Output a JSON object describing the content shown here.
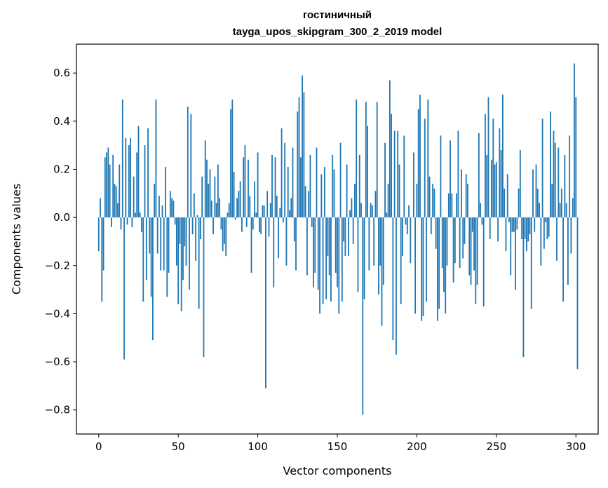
{
  "chart_data": {
    "type": "bar",
    "title_lines": [
      "гостиничный",
      "tayga_upos_skipgram_300_2_2019 model"
    ],
    "xlabel": "Vector components",
    "ylabel": "Components values",
    "xlim": [
      -14,
      314
    ],
    "ylim": [
      -0.9,
      0.72
    ],
    "xticks": [
      0,
      50,
      100,
      150,
      200,
      250,
      300
    ],
    "yticks": [
      -0.8,
      -0.6,
      -0.4,
      -0.2,
      0.0,
      0.2,
      0.4,
      0.6
    ],
    "xtick_labels": [
      "0",
      "50",
      "100",
      "150",
      "200",
      "250",
      "300"
    ],
    "ytick_labels": [
      "−0.8",
      "−0.6",
      "−0.4",
      "−0.2",
      "0.0",
      "0.2",
      "0.4",
      "0.6"
    ],
    "bar_color": "#1f77b4",
    "values": [
      -0.14,
      0.08,
      -0.35,
      -0.22,
      0.25,
      0.27,
      0.29,
      0.22,
      -0.04,
      0.26,
      0.14,
      0.13,
      0.06,
      0.22,
      -0.05,
      0.49,
      -0.59,
      0.33,
      -0.03,
      0.3,
      0.33,
      -0.04,
      0.17,
      0.02,
      0.27,
      0.38,
      0.02,
      -0.06,
      -0.35,
      0.3,
      -0.26,
      0.37,
      -0.15,
      -0.33,
      -0.51,
      0.14,
      0.49,
      -0.15,
      0.09,
      -0.22,
      0.05,
      -0.22,
      0.21,
      -0.33,
      -0.23,
      0.11,
      0.08,
      0.07,
      -0.03,
      -0.2,
      -0.36,
      -0.11,
      -0.39,
      -0.26,
      -0.12,
      -0.2,
      0.46,
      -0.3,
      0.43,
      -0.07,
      0.1,
      -0.18,
      0.01,
      -0.38,
      -0.09,
      0.17,
      -0.58,
      0.32,
      0.24,
      0.14,
      0.2,
      0.07,
      -0.07,
      0.17,
      0.06,
      0.22,
      0.08,
      -0.05,
      -0.14,
      -0.11,
      -0.16,
      0.02,
      0.06,
      0.45,
      0.49,
      0.19,
      -0.01,
      0.08,
      0.11,
      0.15,
      -0.06,
      0.25,
      0.3,
      -0.04,
      0.24,
      0.09,
      -0.23,
      -0.05,
      0.15,
      0.02,
      0.27,
      -0.06,
      -0.07,
      0.05,
      0.05,
      -0.71,
      0.11,
      -0.08,
      0.06,
      0.26,
      -0.29,
      0.25,
      0.09,
      -0.17,
      0.04,
      0.37,
      -0.02,
      0.31,
      -0.2,
      0.21,
      0.03,
      0.08,
      0.29,
      -0.1,
      -0.22,
      0.44,
      0.5,
      0.25,
      0.59,
      0.52,
      0.13,
      -0.24,
      0.11,
      0.26,
      -0.04,
      -0.29,
      -0.23,
      0.29,
      -0.3,
      -0.4,
      0.18,
      -0.36,
      0.21,
      -0.34,
      -0.16,
      -0.24,
      -0.35,
      0.26,
      0.2,
      -0.23,
      -0.29,
      -0.4,
      0.31,
      -0.35,
      -0.1,
      -0.16,
      0.22,
      -0.16,
      0.03,
      0.08,
      -0.11,
      0.14,
      0.49,
      -0.31,
      0.26,
      0.06,
      -0.82,
      -0.34,
      0.48,
      0.38,
      -0.22,
      0.06,
      0.05,
      -0.2,
      0.11,
      0.48,
      -0.32,
      -0.2,
      -0.45,
      -0.28,
      0.31,
      0.02,
      0.14,
      0.57,
      0.43,
      -0.51,
      0.36,
      -0.57,
      0.36,
      0.22,
      -0.36,
      -0.16,
      0.34,
      -0.03,
      -0.07,
      0.05,
      -0.19,
      0.0,
      0.27,
      -0.4,
      0.14,
      0.45,
      0.51,
      -0.43,
      -0.41,
      0.41,
      -0.35,
      0.49,
      0.17,
      -0.07,
      0.14,
      0.12,
      -0.13,
      -0.43,
      -0.38,
      0.34,
      -0.21,
      -0.31,
      -0.4,
      -0.2,
      0.1,
      0.32,
      0.1,
      -0.27,
      -0.19,
      0.1,
      0.36,
      -0.21,
      0.2,
      -0.17,
      -0.11,
      0.18,
      0.14,
      -0.24,
      -0.28,
      -0.06,
      -0.22,
      -0.36,
      -0.28,
      0.35,
      0.06,
      -0.03,
      -0.37,
      0.43,
      0.26,
      0.5,
      -0.09,
      0.24,
      0.41,
      0.22,
      0.23,
      -0.1,
      0.37,
      0.28,
      0.51,
      0.12,
      -0.14,
      0.18,
      -0.02,
      -0.24,
      -0.06,
      -0.06,
      -0.3,
      -0.05,
      0.12,
      0.28,
      -0.09,
      -0.58,
      -0.09,
      -0.14,
      -0.1,
      -0.07,
      -0.38,
      0.2,
      -0.06,
      0.22,
      0.12,
      0.06,
      -0.2,
      0.41,
      -0.13,
      -0.02,
      -0.09,
      -0.08,
      0.44,
      0.14,
      0.36,
      0.31,
      -0.18,
      0.29,
      0.06,
      0.12,
      -0.35,
      0.26,
      0.06,
      -0.28,
      0.34,
      -0.15,
      0.08,
      0.64,
      0.5,
      -0.63
    ]
  }
}
